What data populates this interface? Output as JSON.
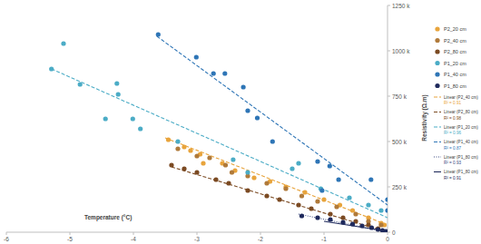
{
  "chart_data": {
    "type": "scatter",
    "xlabel": "Temperature (°C)",
    "ylabel": "Resistivity (Ω.m)",
    "xlim": [
      -6,
      0
    ],
    "ylim": [
      0,
      1250000
    ],
    "xticks": [
      -6,
      -5,
      -4,
      -3,
      -2,
      -1,
      0
    ],
    "yticks": [
      0,
      {
        "value": 250000,
        "label": "250 k"
      },
      {
        "value": 500000,
        "label": "500 k"
      },
      {
        "value": 750000,
        "label": "750 k"
      },
      {
        "value": 1000000,
        "label": "1000 k"
      },
      {
        "value": 1250000,
        "label": "1250 k"
      }
    ],
    "grid": false,
    "legend": "right",
    "series": [
      {
        "name": "P2_20 cm",
        "type": "scatter",
        "marker": "circle",
        "color": "#e8a43c",
        "x": [
          -3.45,
          -3.2,
          -3.1,
          -2.95,
          -2.9,
          -2.6,
          -2.4,
          -2.1,
          -1.85,
          -1.6,
          -1.3,
          -1.0,
          -0.75,
          -0.55,
          -0.3,
          -0.1,
          -0.05
        ],
        "values": [
          510000,
          470000,
          450000,
          430000,
          380000,
          380000,
          340000,
          300000,
          280000,
          250000,
          220000,
          180000,
          150000,
          120000,
          80000,
          50000,
          40000
        ]
      },
      {
        "name": "P2_40 cm",
        "type": "scatter",
        "marker": "circle",
        "color": "#b07a3a",
        "x": [
          -3.3,
          -3.0,
          -2.8,
          -2.55,
          -2.45,
          -2.2,
          -1.9,
          -1.6,
          -1.35,
          -1.1,
          -0.8,
          -0.5,
          -0.3,
          -0.1
        ],
        "values": [
          460000,
          420000,
          410000,
          370000,
          330000,
          310000,
          270000,
          240000,
          200000,
          170000,
          140000,
          100000,
          60000,
          40000
        ]
      },
      {
        "name": "P2_80 cm",
        "type": "scatter",
        "marker": "circle",
        "color": "#7b4a22",
        "x": [
          -3.4,
          -3.2,
          -3.0,
          -2.7,
          -2.5,
          -2.2,
          -1.9,
          -1.7,
          -1.4,
          -1.2,
          -0.9,
          -0.7,
          -0.5,
          -0.3,
          -0.15
        ],
        "values": [
          370000,
          350000,
          330000,
          290000,
          270000,
          230000,
          200000,
          180000,
          150000,
          130000,
          100000,
          80000,
          60000,
          40000,
          20000
        ]
      },
      {
        "name": "P1_20 cm",
        "type": "scatter",
        "marker": "circle",
        "color": "#4bacc6",
        "x": [
          -5.1,
          -5.29,
          -4.84,
          -4.26,
          -4.24,
          -4.44,
          -4.01,
          -3.89,
          -3.3,
          -2.43,
          -2.2,
          -1.5,
          -1.4,
          -1.05,
          -0.6,
          -0.3,
          -0.1
        ],
        "values": [
          1040000,
          900000,
          815000,
          820000,
          760000,
          625000,
          625000,
          570000,
          500000,
          400000,
          330000,
          350000,
          380000,
          240000,
          190000,
          150000,
          120000
        ]
      },
      {
        "name": "P1_40 cm",
        "type": "scatter",
        "marker": "circle",
        "color": "#2e75b6",
        "x": [
          -3.61,
          -3.01,
          -2.74,
          -2.56,
          -2.27,
          -2.2,
          -2.05,
          -1.81,
          -1.1,
          -0.91,
          -0.77,
          -1.03,
          -0.26,
          0,
          0
        ],
        "values": [
          1090000,
          965000,
          875000,
          875000,
          800000,
          670000,
          630000,
          500000,
          390000,
          365000,
          290000,
          230000,
          290000,
          120000,
          180000
        ]
      },
      {
        "name": "P1_80 cm",
        "type": "scatter",
        "marker": "circle",
        "color": "#1f2a5c",
        "x": [
          -1.35,
          -1.1,
          -0.9,
          -0.7,
          -0.55,
          -0.4,
          -0.25,
          -0.15,
          -0.08,
          -0.03,
          0
        ],
        "values": [
          90000,
          80000,
          70000,
          55000,
          45000,
          35000,
          25000,
          15000,
          10000,
          5000,
          3000
        ]
      },
      {
        "name": "Linear (P2_40 cm)",
        "annotation": "R² = 0.91",
        "type": "line",
        "line_style": "dashed",
        "color": "#e8a43c",
        "x": [
          -3.5,
          0
        ],
        "values": [
          520000,
          40000
        ]
      },
      {
        "name": "Linear (P2_80 cm)",
        "annotation": "R² = 0.98",
        "type": "line",
        "line_style": "dashed",
        "color": "#7b4a22",
        "x": [
          -3.4,
          0
        ],
        "values": [
          360000,
          0
        ]
      },
      {
        "name": "Linear (P1_20 cm)",
        "annotation": "R² = 0.96",
        "type": "line",
        "line_style": "dashed",
        "color": "#4bacc6",
        "x": [
          -5.29,
          0
        ],
        "values": [
          900000,
          80000
        ]
      },
      {
        "name": "Linear (P1_40 cm)",
        "annotation": "R² = 0.87",
        "type": "line",
        "line_style": "dashed",
        "color": "#2e75b6",
        "x": [
          -3.63,
          0
        ],
        "values": [
          1080000,
          150000
        ]
      },
      {
        "name": "Linear (P1_80 cm)",
        "annotation": "R² = 0.93",
        "type": "line",
        "line_style": "dotted",
        "color": "#3a4a80",
        "x": [
          -1.4,
          0
        ],
        "values": [
          100000,
          0
        ]
      },
      {
        "name": "Linear (P1_80 cm)",
        "annotation": "R² = 0.91",
        "type": "line",
        "line_style": "solid",
        "color": "#1f2a5c",
        "x": [
          -1.0,
          0
        ],
        "values": [
          60000,
          5000
        ]
      }
    ]
  }
}
